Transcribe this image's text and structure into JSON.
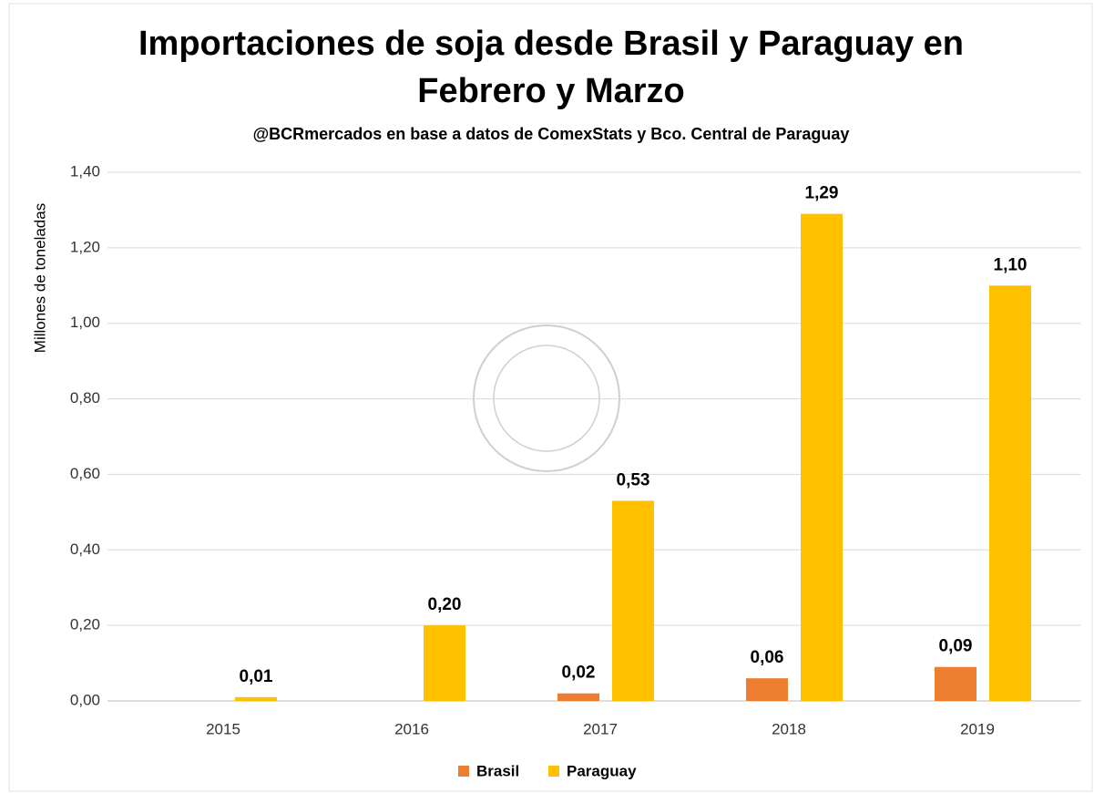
{
  "chart_data": {
    "type": "bar",
    "title": [
      "Importaciones de soja desde Brasil y Paraguay en",
      "Febrero y Marzo"
    ],
    "subtitle": "@BCRmercados en base a datos de ComexStats y Bco. Central de Paraguay",
    "y_label": "Millones de toneladas",
    "categories": [
      "2015",
      "2016",
      "2017",
      "2018",
      "2019"
    ],
    "series": [
      {
        "name": "Brasil",
        "color": "#ed7d31",
        "values": [
          null,
          null,
          0.02,
          0.06,
          0.09
        ],
        "value_labels": [
          null,
          null,
          "0,02",
          "0,06",
          "0,09"
        ]
      },
      {
        "name": "Paraguay",
        "color": "#ffc000",
        "values": [
          0.01,
          0.2,
          0.53,
          1.29,
          1.1
        ],
        "value_labels": [
          "0,01",
          "0,20",
          "0,53",
          "1,29",
          "1,10"
        ]
      }
    ],
    "ylim": [
      0,
      1.4
    ],
    "yticks": [
      {
        "value": 0,
        "label": "0,00"
      },
      {
        "value": 0.2,
        "label": "0,20"
      },
      {
        "value": 0.4,
        "label": "0,40"
      },
      {
        "value": 0.6,
        "label": "0,60"
      },
      {
        "value": 0.8,
        "label": "0,80"
      },
      {
        "value": 1.0,
        "label": "1,00"
      },
      {
        "value": 1.2,
        "label": "1,20"
      },
      {
        "value": 1.4,
        "label": "1,40"
      }
    ],
    "grid": true,
    "legend": "bottom"
  }
}
